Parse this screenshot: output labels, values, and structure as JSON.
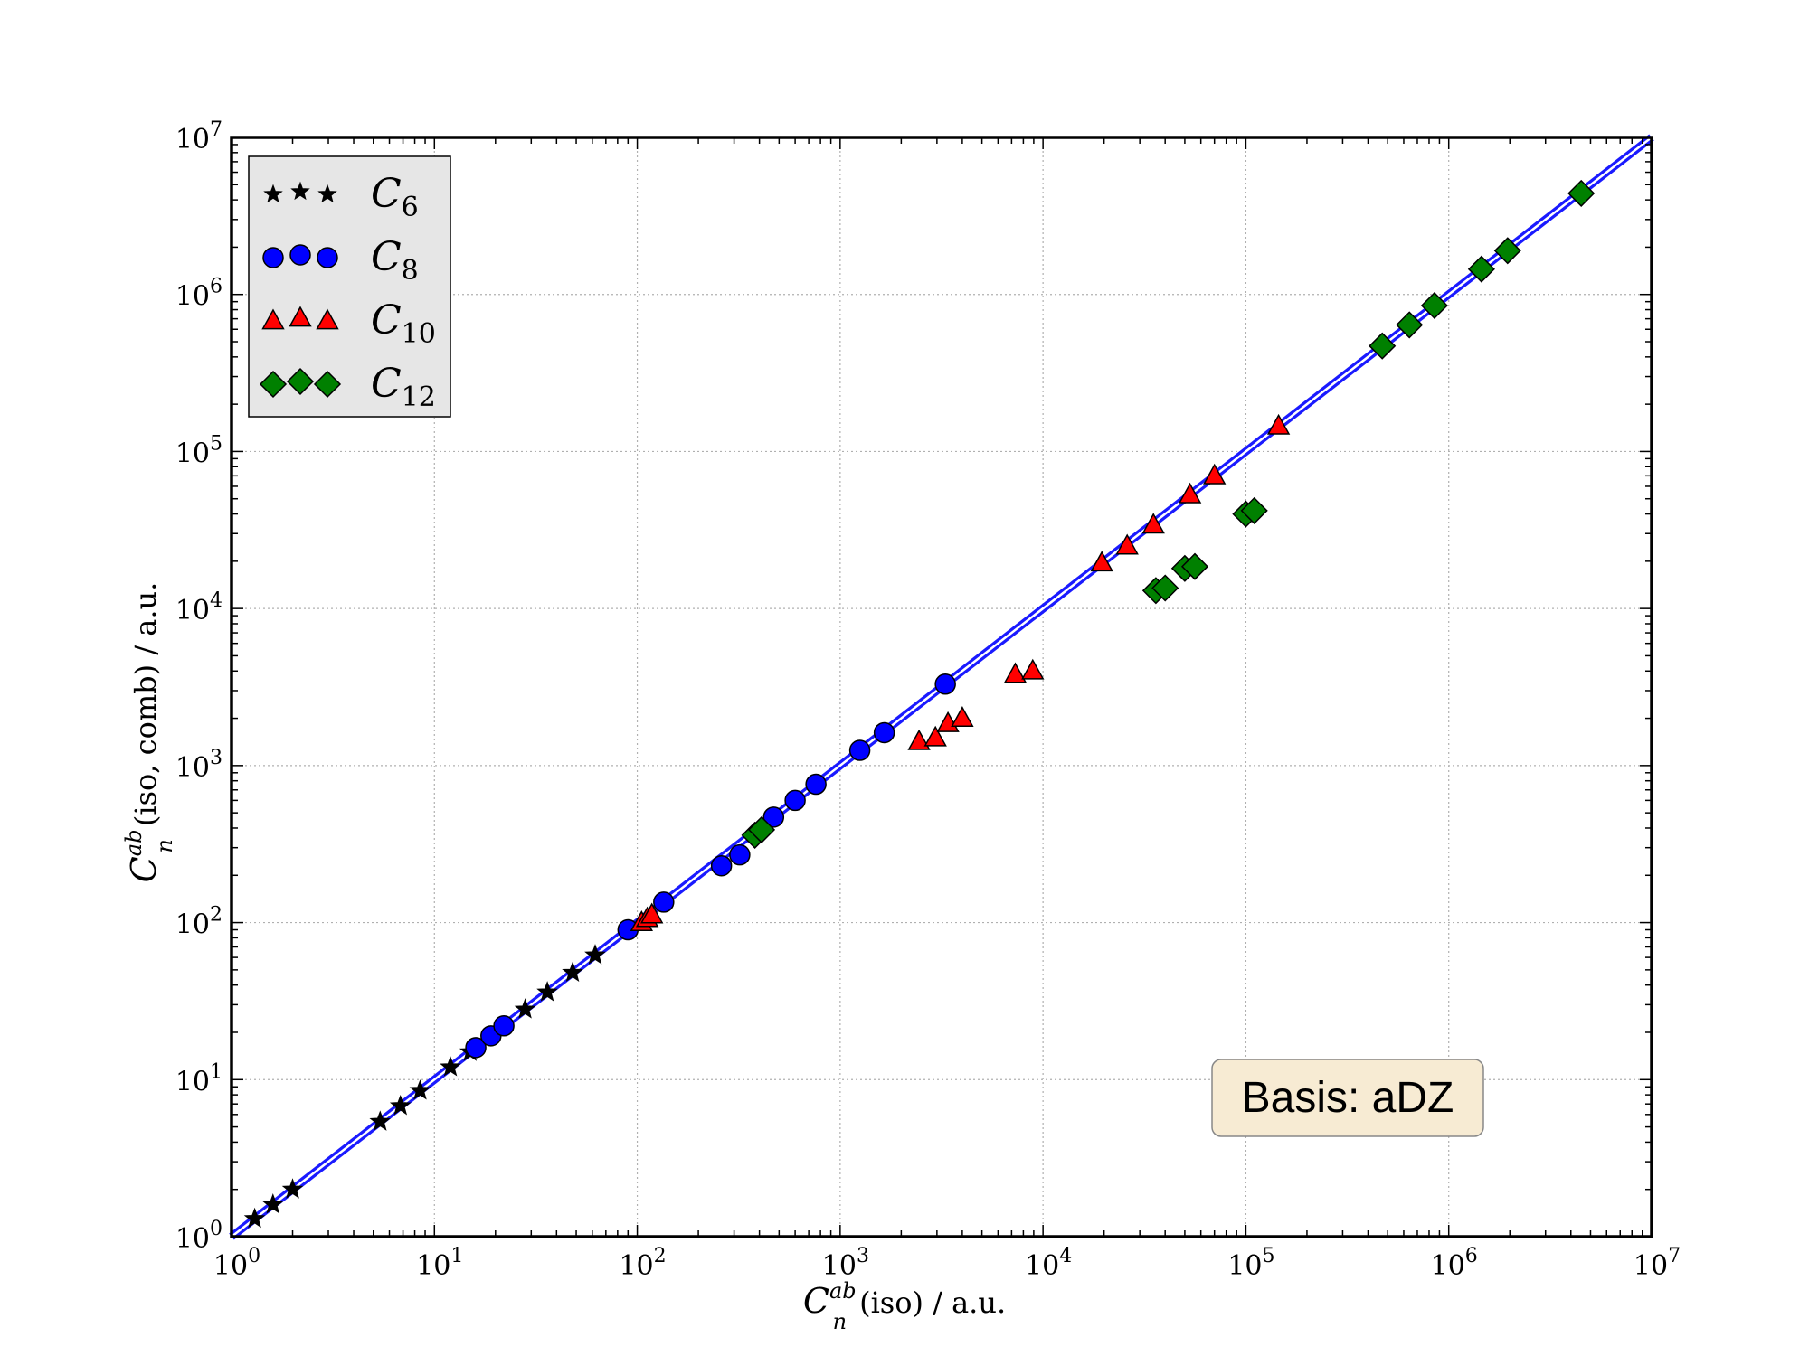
{
  "chart_data": {
    "type": "scatter",
    "xlabel": {
      "base": "C",
      "sup": "ab",
      "sub": "n",
      "rest": "(iso) / a.u."
    },
    "ylabel": {
      "base": "C",
      "sup": "ab",
      "sub": "n",
      "rest": "(iso, comb) / a.u."
    },
    "x_scale": "log",
    "y_scale": "log",
    "xlim": [
      1,
      10000000
    ],
    "ylim": [
      1,
      10000000
    ],
    "x_tick_labels": [
      {
        "base": "10",
        "exp": "0"
      },
      {
        "base": "10",
        "exp": "1"
      },
      {
        "base": "10",
        "exp": "2"
      },
      {
        "base": "10",
        "exp": "3"
      },
      {
        "base": "10",
        "exp": "4"
      },
      {
        "base": "10",
        "exp": "5"
      },
      {
        "base": "10",
        "exp": "6"
      },
      {
        "base": "10",
        "exp": "7"
      }
    ],
    "y_tick_labels": [
      {
        "base": "10",
        "exp": "0"
      },
      {
        "base": "10",
        "exp": "1"
      },
      {
        "base": "10",
        "exp": "2"
      },
      {
        "base": "10",
        "exp": "3"
      },
      {
        "base": "10",
        "exp": "4"
      },
      {
        "base": "10",
        "exp": "5"
      },
      {
        "base": "10",
        "exp": "6"
      },
      {
        "base": "10",
        "exp": "7"
      }
    ],
    "grid": true,
    "legend_position": "top-left",
    "reference_line": {
      "type": "y=x",
      "color": "#1a1aff"
    },
    "series": [
      {
        "name": {
          "base": "C",
          "sub": "6"
        },
        "marker": "star",
        "color": "#000000",
        "x": [
          1.3,
          1.6,
          2.0,
          5.4,
          6.8,
          8.5,
          12,
          15,
          28,
          36,
          48,
          62
        ],
        "y": [
          1.3,
          1.6,
          2.0,
          5.4,
          6.8,
          8.5,
          12,
          15,
          28,
          36,
          48,
          62
        ]
      },
      {
        "name": {
          "base": "C",
          "sub": "8"
        },
        "marker": "circle",
        "color": "#0000ff",
        "x": [
          90,
          135,
          16,
          19,
          22,
          260,
          320,
          470,
          600,
          760,
          1250,
          1650,
          3300
        ],
        "y": [
          90,
          135,
          16,
          19,
          22,
          230,
          270,
          470,
          600,
          760,
          1250,
          1620,
          3300
        ]
      },
      {
        "name": {
          "base": "C",
          "sub": "10"
        },
        "marker": "triangle",
        "color": "#ff0000",
        "x": [
          105,
          112,
          118,
          2450,
          2950,
          3400,
          4000,
          7300,
          8900,
          19500,
          26000,
          35000,
          53000,
          70000,
          145000
        ],
        "y": [
          100,
          106,
          112,
          1420,
          1500,
          1850,
          2000,
          3800,
          4000,
          19500,
          25000,
          34000,
          53000,
          70000,
          145000
        ]
      },
      {
        "name": {
          "base": "C",
          "sub": "12"
        },
        "marker": "diamond",
        "color": "#008000",
        "x": [
          380,
          410,
          36000,
          40000,
          50000,
          56000,
          100000,
          110000,
          470000,
          640000,
          850000,
          1450000,
          1950000,
          4500000
        ],
        "y": [
          360,
          390,
          13000,
          13500,
          18000,
          18500,
          40000,
          42000,
          470000,
          640000,
          850000,
          1450000,
          1900000,
          4400000
        ]
      }
    ],
    "annotation": "Basis: aDZ"
  }
}
